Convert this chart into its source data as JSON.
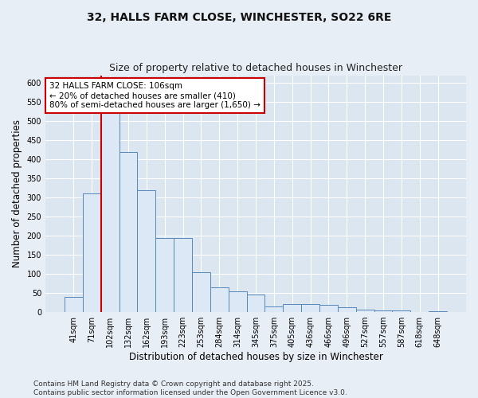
{
  "title_line1": "32, HALLS FARM CLOSE, WINCHESTER, SO22 6RE",
  "title_line2": "Size of property relative to detached houses in Winchester",
  "xlabel": "Distribution of detached houses by size in Winchester",
  "ylabel": "Number of detached properties",
  "categories": [
    "41sqm",
    "71sqm",
    "102sqm",
    "132sqm",
    "162sqm",
    "193sqm",
    "223sqm",
    "253sqm",
    "284sqm",
    "314sqm",
    "345sqm",
    "375sqm",
    "405sqm",
    "436sqm",
    "466sqm",
    "496sqm",
    "527sqm",
    "557sqm",
    "587sqm",
    "618sqm",
    "648sqm"
  ],
  "values": [
    40,
    310,
    560,
    420,
    320,
    195,
    195,
    105,
    65,
    55,
    45,
    15,
    20,
    20,
    18,
    12,
    7,
    4,
    4,
    0,
    3
  ],
  "bar_color": "#dce8f5",
  "bar_edge_color": "#5588bb",
  "vline_color": "#cc0000",
  "vline_label": "32 HALLS FARM CLOSE: 106sqm",
  "annotation_line2": "← 20% of detached houses are smaller (410)",
  "annotation_line3": "80% of semi-detached houses are larger (1,650) →",
  "box_color": "#cc0000",
  "ylim_max": 620,
  "ytick_step": 50,
  "bg_color": "#e8eef5",
  "plot_bg_color": "#dce6f0",
  "grid_color": "#ffffff",
  "footer_line1": "Contains HM Land Registry data © Crown copyright and database right 2025.",
  "footer_line2": "Contains public sector information licensed under the Open Government Licence v3.0.",
  "title_fontsize": 10,
  "subtitle_fontsize": 9,
  "axis_label_fontsize": 8.5,
  "tick_fontsize": 7,
  "annotation_fontsize": 7.5,
  "footer_fontsize": 6.5
}
